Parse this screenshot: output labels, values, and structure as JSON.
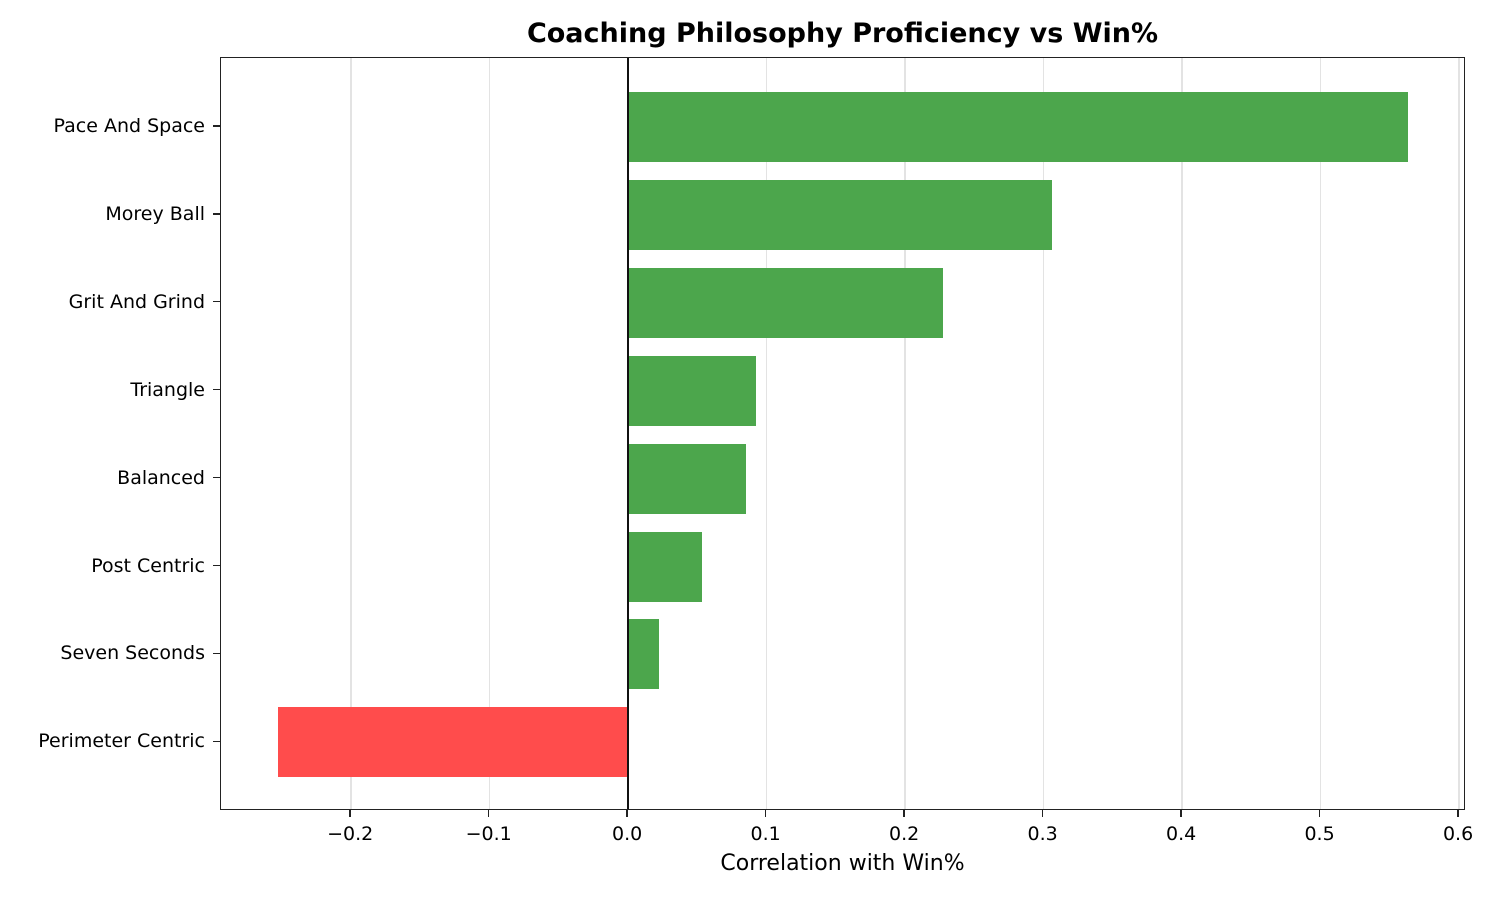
{
  "chart_data": {
    "type": "bar",
    "orientation": "horizontal",
    "title": "Coaching Philosophy Proficiency vs Win%",
    "xlabel": "Correlation with Win%",
    "ylabel": "",
    "categories": [
      "Pace And Space",
      "Morey Ball",
      "Grit And Grind",
      "Triangle",
      "Balanced",
      "Post Centric",
      "Seven Seconds",
      "Perimeter Centric"
    ],
    "values": [
      0.563,
      0.306,
      0.227,
      0.092,
      0.085,
      0.053,
      0.022,
      -0.253
    ],
    "xlim": [
      -0.294,
      0.605
    ],
    "xticks": [
      -0.2,
      -0.1,
      0.0,
      0.1,
      0.2,
      0.3,
      0.4,
      0.5,
      0.6
    ],
    "xtick_labels": [
      "−0.2",
      "−0.1",
      "0.0",
      "0.1",
      "0.2",
      "0.3",
      "0.4",
      "0.5",
      "0.6"
    ],
    "grid": "x",
    "legend": null,
    "colors": {
      "positive": "#4CA64C",
      "negative": "#FF4C4C"
    }
  }
}
